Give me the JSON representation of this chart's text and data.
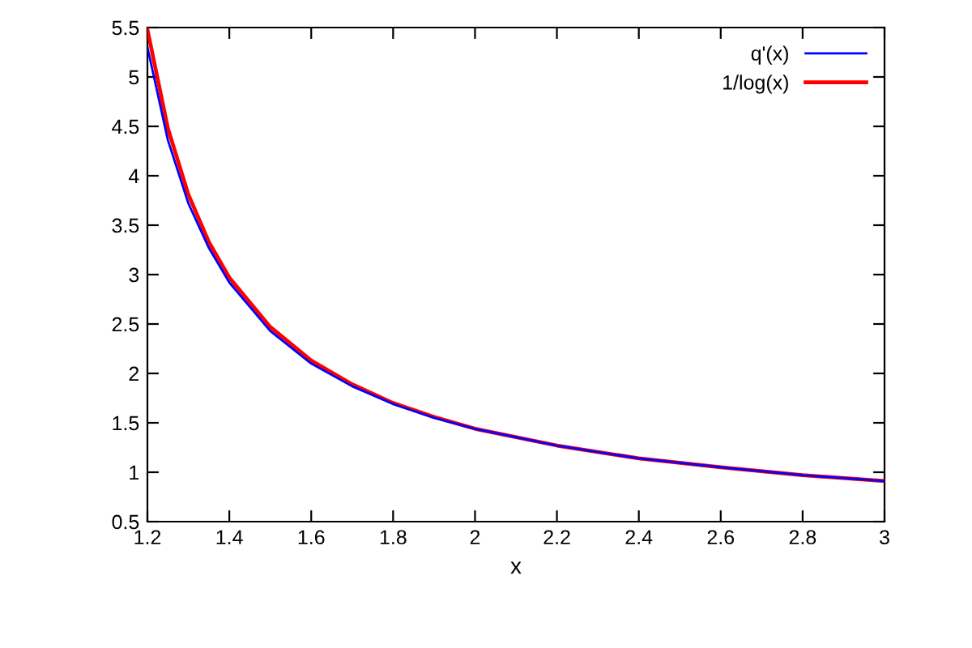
{
  "chart_data": {
    "type": "line",
    "xlabel": "x",
    "xlim": [
      1.2,
      3
    ],
    "ylim": [
      0.5,
      5.5
    ],
    "xticks": [
      1.2,
      1.4,
      1.6,
      1.8,
      2,
      2.2,
      2.4,
      2.6,
      2.8,
      3
    ],
    "yticks": [
      0.5,
      1,
      1.5,
      2,
      2.5,
      3,
      3.5,
      4,
      4.5,
      5,
      5.5
    ],
    "grid": false,
    "legend": "top right",
    "marker": "none",
    "line_style": "solid",
    "series": [
      {
        "name": "q'(x)",
        "color": "#0000ff",
        "x": [
          1.2,
          1.25,
          1.3,
          1.35,
          1.4,
          1.5,
          1.6,
          1.7,
          1.8,
          1.9,
          2,
          2.2,
          2.4,
          2.6,
          2.8,
          3
        ],
        "values": [
          5.3,
          4.36,
          3.72,
          3.27,
          2.92,
          2.43,
          2.1,
          1.87,
          1.69,
          1.55,
          1.44,
          1.27,
          1.14,
          1.05,
          0.97,
          0.91
        ]
      },
      {
        "name": "1/log(x)",
        "color": "#ff0000",
        "x": [
          1.2,
          1.25,
          1.3,
          1.35,
          1.4,
          1.5,
          1.6,
          1.7,
          1.8,
          1.9,
          2,
          2.2,
          2.4,
          2.6,
          2.8,
          3
        ],
        "values": [
          5.48,
          4.48,
          3.81,
          3.33,
          2.97,
          2.47,
          2.13,
          1.89,
          1.7,
          1.56,
          1.44,
          1.27,
          1.14,
          1.05,
          0.97,
          0.91
        ]
      }
    ]
  }
}
